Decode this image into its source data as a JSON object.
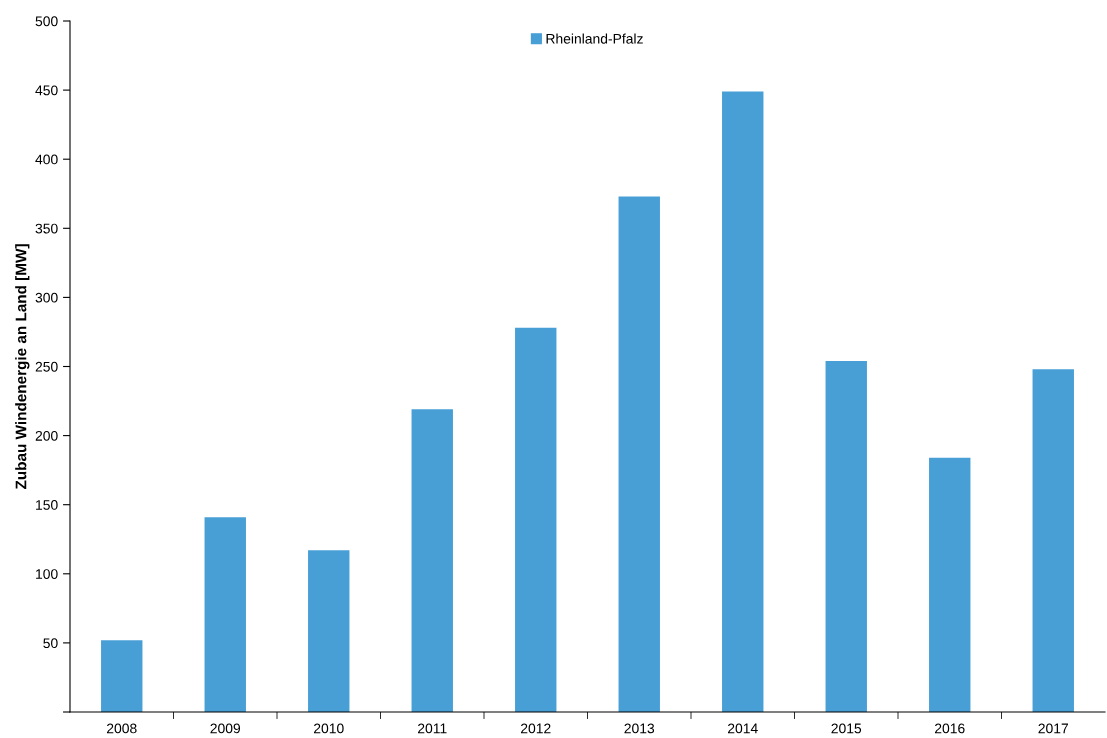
{
  "chart_data": {
    "type": "bar",
    "ylabel": "Zubau Windenergie an Land [MW]",
    "categories": [
      "2008",
      "2009",
      "2010",
      "2011",
      "2012",
      "2013",
      "2014",
      "2015",
      "2016",
      "2017"
    ],
    "series": [
      {
        "name": "Rheinland-Pfalz",
        "color": "#479fd6",
        "values": [
          52,
          141,
          117,
          219,
          278,
          373,
          449,
          254,
          184,
          248
        ]
      }
    ],
    "ylim": [
      0,
      500
    ],
    "yticks": [
      {
        "value": 0,
        "label": null
      },
      50,
      100,
      150,
      200,
      250,
      300,
      350,
      400,
      450,
      500
    ],
    "grid": false,
    "legend": "top"
  }
}
